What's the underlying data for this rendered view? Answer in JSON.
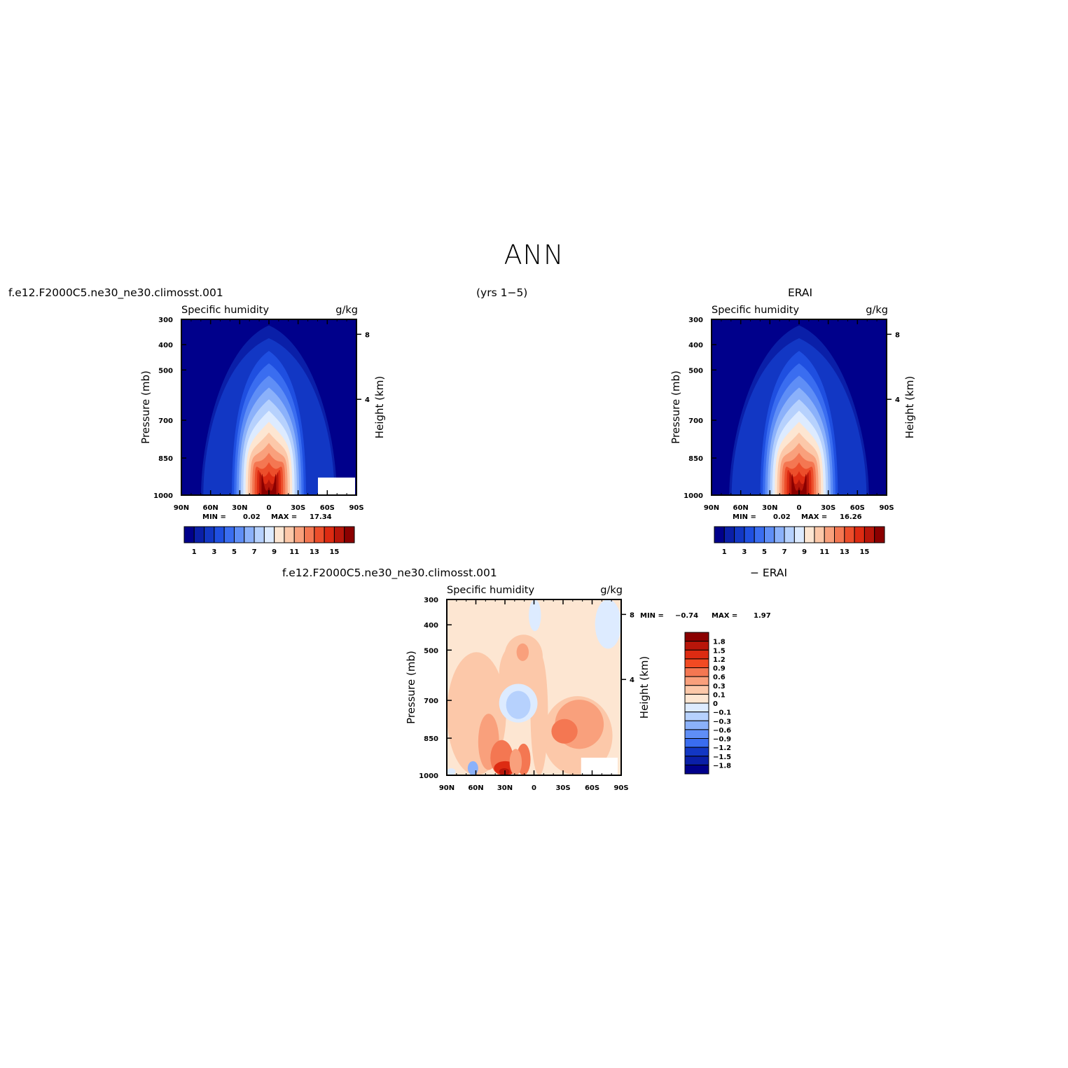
{
  "main_title": "ANN",
  "headers": {
    "test_case": "f.e12.F2000C5.ne30_ne30.climosst.001",
    "years": "(yrs  1−5)",
    "reference": "ERAI",
    "diff_case": "f.e12.F2000C5.ne30_ne30.climosst.001",
    "diff_ref": "−  ERAI"
  },
  "chart_data": [
    {
      "type": "heatmap",
      "name": "model",
      "title": "Specific  humidity",
      "units": "g/kg",
      "xlabel": "",
      "ylabel": "Pressure  (mb)",
      "y2label": "Height  (km)",
      "x_ticks": [
        "90N",
        "60N",
        "30N",
        "0",
        "30S",
        "60S",
        "90S"
      ],
      "y_ticks": [
        "300",
        "400",
        "500",
        "700",
        "850",
        "1000"
      ],
      "y2_ticks": [
        "8",
        "4"
      ],
      "min_label": "MIN =",
      "min_value": "0.02",
      "max_label": "MAX =",
      "max_value": "17.34",
      "colorbar_labels": [
        "1",
        "3",
        "5",
        "7",
        "9",
        "11",
        "13",
        "15"
      ],
      "colors": [
        "#00008b",
        "#0a1fa8",
        "#1237c4",
        "#1f4fe0",
        "#3a6df0",
        "#5f8ef6",
        "#8bb1fa",
        "#b6d1fd",
        "#ddebff",
        "#fde6d2",
        "#fcc8a9",
        "#f9a07c",
        "#f47752",
        "#ec4e2b",
        "#dd2b12",
        "#b8160a",
        "#8b0000"
      ],
      "max_amp": 17.34,
      "width_top": 55,
      "width_bottom": 38,
      "height_scale": 0.62,
      "core_lat": 0
    },
    {
      "type": "heatmap",
      "name": "reference",
      "title": "Specific  humidity",
      "units": "g/kg",
      "xlabel": "",
      "ylabel": "Pressure  (mb)",
      "y2label": "Height  (km)",
      "x_ticks": [
        "90N",
        "60N",
        "30N",
        "0",
        "30S",
        "60S",
        "90S"
      ],
      "y_ticks": [
        "300",
        "400",
        "500",
        "700",
        "850",
        "1000"
      ],
      "y2_ticks": [
        "8",
        "4"
      ],
      "min_label": "MIN =",
      "min_value": "0.02",
      "max_label": "MAX =",
      "max_value": "16.26",
      "colorbar_labels": [
        "1",
        "3",
        "5",
        "7",
        "9",
        "11",
        "13",
        "15"
      ],
      "colors": [
        "#00008b",
        "#0a1fa8",
        "#1237c4",
        "#1f4fe0",
        "#3a6df0",
        "#5f8ef6",
        "#8bb1fa",
        "#b6d1fd",
        "#ddebff",
        "#fde6d2",
        "#fcc8a9",
        "#f9a07c",
        "#f47752",
        "#ec4e2b",
        "#dd2b12",
        "#b8160a",
        "#8b0000"
      ],
      "max_amp": 16.26,
      "width_top": 55,
      "width_bottom": 40,
      "height_scale": 0.62,
      "core_lat": 0
    },
    {
      "type": "heatmap",
      "name": "difference",
      "title": "Specific  humidity",
      "units": "g/kg",
      "xlabel": "",
      "ylabel": "Pressure  (mb)",
      "y2label": "Height  (km)",
      "x_ticks": [
        "90N",
        "60N",
        "30N",
        "0",
        "30S",
        "60S",
        "90S"
      ],
      "y_ticks": [
        "300",
        "400",
        "500",
        "700",
        "850",
        "1000"
      ],
      "y2_ticks": [
        "8",
        "4"
      ],
      "min_label": "MIN =",
      "min_value": "−0.74",
      "max_label": "MAX =",
      "max_value": "1.97",
      "colorbar_labels": [
        "1.8",
        "1.5",
        "1.2",
        "0.9",
        "0.6",
        "0.3",
        "0.1",
        "0",
        "−0.1",
        "−0.3",
        "−0.6",
        "−0.9",
        "−1.2",
        "−1.5",
        "−1.8"
      ],
      "colors": [
        "#8b0000",
        "#b8160a",
        "#dd2b12",
        "#f24a22",
        "#f47752",
        "#f9a07c",
        "#fcc8a9",
        "#fde6d2",
        "#ddebff",
        "#b6d1fd",
        "#8bb1fa",
        "#5f8ef6",
        "#3a6df0",
        "#1237c4",
        "#0a1fa8",
        "#00008b"
      ]
    }
  ]
}
